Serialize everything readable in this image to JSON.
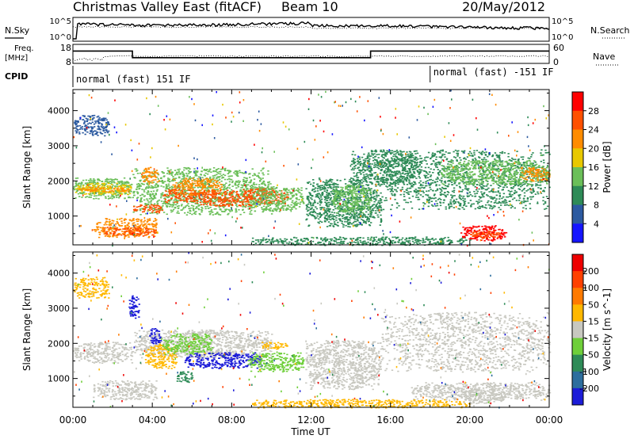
{
  "header": {
    "title": "Christmas Valley East (fitACF)",
    "beam": "Beam 10",
    "date": "20/May/2012"
  },
  "strips": {
    "nsky_label": "N.Sky",
    "nsky_ticks": [
      "10^5",
      "10^0"
    ],
    "nsearch_label": "N.Search",
    "nsearch_ticks": [
      "10^5",
      "10^0"
    ],
    "freq_label": [
      "Freq.",
      "[MHz]"
    ],
    "freq_ticks": [
      "18",
      "8"
    ],
    "nave_label": "Nave",
    "nave_ticks": [
      "60",
      "0"
    ],
    "cpid_label": "CPID",
    "cpid_segments": [
      {
        "text": "normal (fast) 151 IF",
        "start_h": 0,
        "end_h": 18
      },
      {
        "text": "normal (fast) -151 IF",
        "start_h": 18,
        "end_h": 24
      }
    ],
    "freq_profile": [
      {
        "start_h": 0,
        "end_h": 3,
        "mhz": 14.5
      },
      {
        "start_h": 3,
        "end_h": 15,
        "mhz": 11
      },
      {
        "start_h": 15,
        "end_h": 24,
        "mhz": 14.5
      }
    ]
  },
  "chart_data": [
    {
      "type": "heatmap",
      "name": "power",
      "ylabel": "Slant Range [km]",
      "xlabel": "",
      "ylim": [
        180,
        4600
      ],
      "xlim_hours": [
        0,
        24
      ],
      "yticks": [
        1000,
        2000,
        3000,
        4000
      ],
      "colorbar": {
        "label": "Power [dB]",
        "ticks": [
          "4",
          "8",
          "12",
          "16",
          "20",
          "24",
          "28"
        ],
        "colors": [
          "#1515ff",
          "#2c5aa0",
          "#2e8b57",
          "#6bbf59",
          "#e8c800",
          "#ff8c00",
          "#ff5000",
          "#ff0000"
        ]
      },
      "blobs": [
        {
          "h0": 0.0,
          "h1": 3.0,
          "r0": 1500,
          "r1": 2100,
          "level": 4
        },
        {
          "h0": 0.1,
          "h1": 2.9,
          "r0": 1620,
          "r1": 1950,
          "level": 5
        },
        {
          "h0": 0.2,
          "h1": 2.8,
          "r0": 1700,
          "r1": 1850,
          "level": 6
        },
        {
          "h0": 3.0,
          "h1": 10.0,
          "r0": 1050,
          "r1": 2400,
          "level": 4
        },
        {
          "h0": 3.0,
          "h1": 4.5,
          "r0": 1100,
          "r1": 1350,
          "level": 7
        },
        {
          "h0": 4.5,
          "h1": 6.2,
          "r0": 1400,
          "r1": 1800,
          "level": 7
        },
        {
          "h0": 5.0,
          "h1": 7.5,
          "r0": 1600,
          "r1": 2100,
          "level": 6
        },
        {
          "h0": 6.0,
          "h1": 9.0,
          "r0": 1300,
          "r1": 1750,
          "level": 7
        },
        {
          "h0": 8.5,
          "h1": 10.8,
          "r0": 1350,
          "r1": 1800,
          "level": 7
        },
        {
          "h0": 9.0,
          "h1": 11.6,
          "r0": 1150,
          "r1": 1850,
          "level": 4
        },
        {
          "h0": 3.4,
          "h1": 4.3,
          "r0": 1950,
          "r1": 2400,
          "level": 6
        },
        {
          "h0": 1.0,
          "h1": 4.2,
          "r0": 400,
          "r1": 950,
          "level": 6
        },
        {
          "h0": 1.5,
          "h1": 4.2,
          "r0": 450,
          "r1": 700,
          "level": 7
        },
        {
          "h0": 11.7,
          "h1": 15.5,
          "r0": 700,
          "r1": 2100,
          "level": 3
        },
        {
          "h0": 13.0,
          "h1": 15.0,
          "r0": 1100,
          "r1": 1900,
          "level": 4
        },
        {
          "h0": 14.0,
          "h1": 17.5,
          "r0": 1900,
          "r1": 2900,
          "level": 3
        },
        {
          "h0": 15.5,
          "h1": 24.0,
          "r0": 1200,
          "r1": 2900,
          "level": 3
        },
        {
          "h0": 18.5,
          "h1": 24.0,
          "r0": 1900,
          "r1": 2600,
          "level": 4
        },
        {
          "h0": 22.5,
          "h1": 24.0,
          "r0": 2000,
          "r1": 2400,
          "level": 6
        },
        {
          "h0": 0.0,
          "h1": 1.8,
          "r0": 3300,
          "r1": 3900,
          "level": 2
        },
        {
          "h0": 9.0,
          "h1": 20.0,
          "r0": 180,
          "r1": 420,
          "level": 3
        },
        {
          "h0": 19.5,
          "h1": 21.8,
          "r0": 300,
          "r1": 750,
          "level": 8
        },
        {
          "h0": 20.0,
          "h1": 21.5,
          "r0": 380,
          "r1": 600,
          "level": 7
        }
      ]
    },
    {
      "type": "heatmap",
      "name": "velocity",
      "ylabel": "Slant Range [km]",
      "xlabel": "Time UT",
      "ylim": [
        180,
        4600
      ],
      "xlim_hours": [
        0,
        24
      ],
      "yticks": [
        1000,
        2000,
        3000,
        4000
      ],
      "xticks": [
        "00:00",
        "04:00",
        "08:00",
        "12:00",
        "16:00",
        "20:00",
        "00:00"
      ],
      "colorbar": {
        "label": "Velocity [m s^-1]",
        "ticks": [
          "200",
          "100",
          "50",
          "15",
          "-15",
          "-50",
          "-100",
          "-200"
        ],
        "colors": [
          "#1c1cd8",
          "#2d6e9e",
          "#2e8b57",
          "#6fcf3a",
          "#c8c8c0",
          "#ffb800",
          "#ff7a00",
          "#ff4000",
          "#ee0000"
        ]
      },
      "blobs": [
        {
          "h0": 0.0,
          "h1": 3.0,
          "r0": 1450,
          "r1": 2050,
          "level": 5
        },
        {
          "h0": 1.0,
          "h1": 4.2,
          "r0": 400,
          "r1": 950,
          "level": 5
        },
        {
          "h0": 3.0,
          "h1": 10.0,
          "r0": 1600,
          "r1": 2400,
          "level": 5
        },
        {
          "h0": 2.8,
          "h1": 3.3,
          "r0": 2700,
          "r1": 3400,
          "level": 1
        },
        {
          "h0": 3.8,
          "h1": 4.4,
          "r0": 2000,
          "r1": 2450,
          "level": 1
        },
        {
          "h0": 3.6,
          "h1": 5.2,
          "r0": 1300,
          "r1": 2000,
          "level": 6
        },
        {
          "h0": 4.5,
          "h1": 7.0,
          "r0": 1700,
          "r1": 2300,
          "level": 4
        },
        {
          "h0": 5.2,
          "h1": 6.0,
          "r0": 900,
          "r1": 1250,
          "level": 3
        },
        {
          "h0": 5.6,
          "h1": 9.5,
          "r0": 1300,
          "r1": 1750,
          "level": 1
        },
        {
          "h0": 8.8,
          "h1": 11.6,
          "r0": 1200,
          "r1": 1750,
          "level": 4
        },
        {
          "h0": 9.5,
          "h1": 10.8,
          "r0": 1850,
          "r1": 2050,
          "level": 6
        },
        {
          "h0": 11.7,
          "h1": 15.5,
          "r0": 700,
          "r1": 2100,
          "level": 5
        },
        {
          "h0": 15.5,
          "h1": 24.0,
          "r0": 1200,
          "r1": 2900,
          "level": 5
        },
        {
          "h0": 17.0,
          "h1": 24.0,
          "r0": 400,
          "r1": 900,
          "level": 5
        },
        {
          "h0": 9.0,
          "h1": 20.0,
          "r0": 180,
          "r1": 420,
          "level": 6
        },
        {
          "h0": 19.5,
          "h1": 21.8,
          "r0": 300,
          "r1": 750,
          "level": 5
        },
        {
          "h0": 0.0,
          "h1": 1.8,
          "r0": 3300,
          "r1": 3900,
          "level": 6
        }
      ]
    }
  ]
}
